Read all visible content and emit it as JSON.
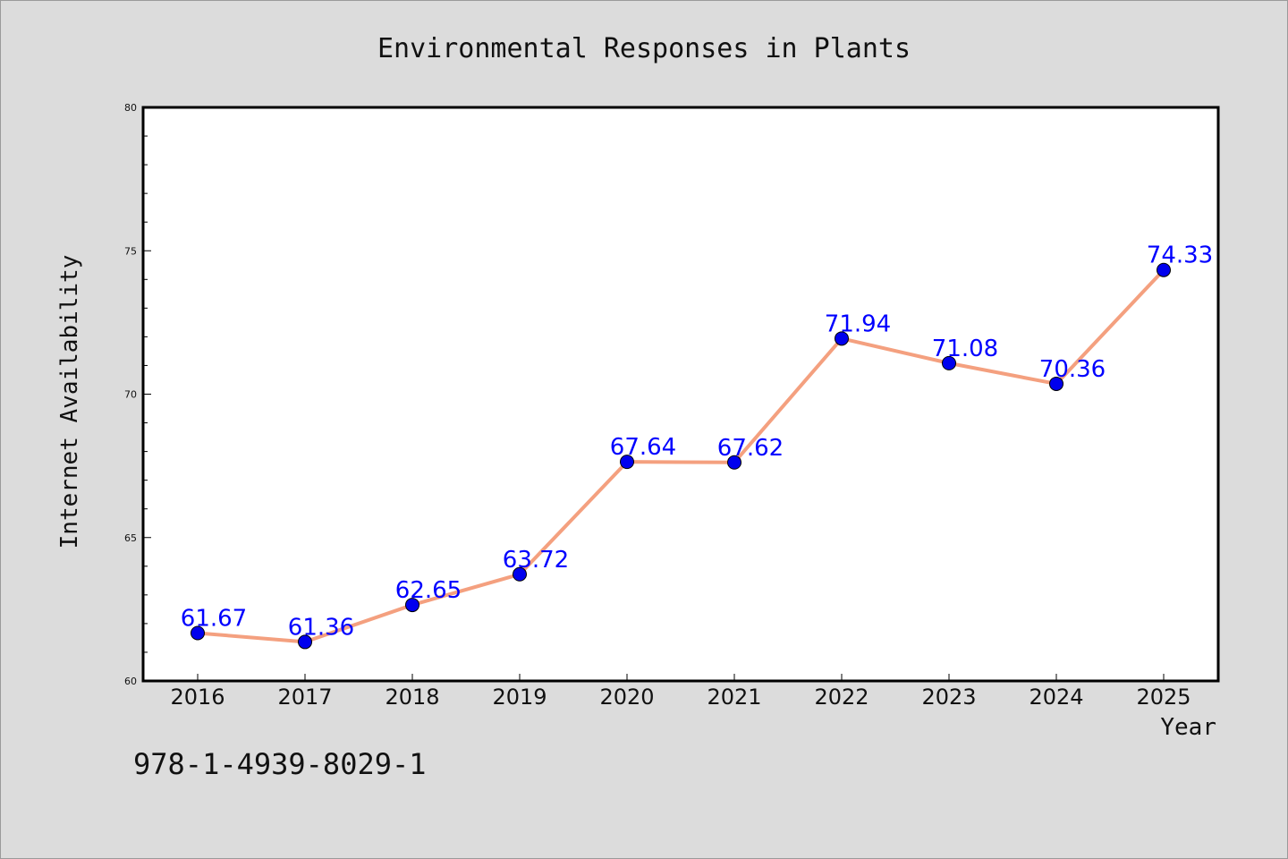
{
  "figure": {
    "background": "#dcdcdc",
    "footer_text": "978-1-4939-8029-1"
  },
  "chart_data": {
    "type": "line",
    "title": "Environmental Responses in Plants",
    "xlabel": "Year",
    "ylabel": "Internet Availability",
    "categories": [
      "2016",
      "2017",
      "2018",
      "2019",
      "2020",
      "2021",
      "2022",
      "2023",
      "2024",
      "2025"
    ],
    "series": [
      {
        "values": [
          61.67,
          61.36,
          62.65,
          63.72,
          67.64,
          67.62,
          71.94,
          71.08,
          70.36,
          74.33
        ],
        "line_color": "#f4a07f",
        "marker_color": "#0000ee",
        "label_color": "#0000ff"
      }
    ],
    "data_labels": [
      "61.67",
      "61.36",
      "62.65",
      "63.72",
      "67.64",
      "67.62",
      "71.94",
      "71.08",
      "70.36",
      "74.33"
    ],
    "ylim": [
      60,
      80
    ],
    "y_ticks": [
      "60",
      "65",
      "70",
      "75",
      "80"
    ],
    "grid": false,
    "legend": "none"
  }
}
